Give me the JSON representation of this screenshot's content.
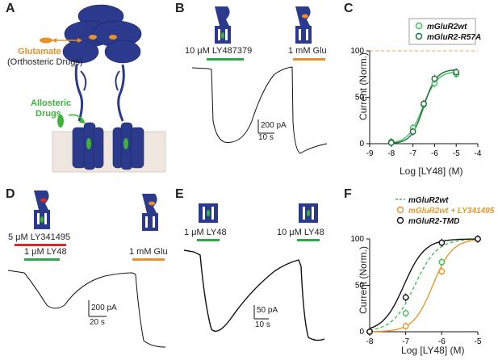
{
  "panels": {
    "a": {
      "label": "A",
      "glutamate_title": "Glutamate",
      "glutamate_sub": "(Orthosteric Drugs)",
      "allosteric_line1": "Allosteric",
      "allosteric_line2": "Drugs",
      "colors": {
        "receptor": "#2b3a8c",
        "glutamate": "#e8902a",
        "allosteric": "#3cb43c",
        "membrane": "#efe6e0"
      }
    },
    "b": {
      "label": "B",
      "drug1": "10 μM LY487379",
      "drug2": "1 mM Glu",
      "scale_y": "200 pA",
      "scale_x": "10 s",
      "colors": {
        "drug1": "#2aa84a",
        "drug2": "#e8902a"
      }
    },
    "c": {
      "label": "C",
      "ylabel": "Current (Norm.)",
      "xlabel": "Log [LY48] (M)",
      "legend": [
        "mGluR2wt",
        "mGluR2-R57A"
      ]
    },
    "d": {
      "label": "D",
      "drug1": "5 μM LY341495",
      "drug2": "1 μM LY48",
      "drug3": "1 mM Glu",
      "scale_y": "200 pA",
      "scale_x": "20 s",
      "colors": {
        "drug1": "#d62a2a",
        "drug2": "#2aa84a",
        "drug3": "#e8902a"
      }
    },
    "e": {
      "label": "E",
      "drug1": "1 μM LY48",
      "drug2": "10 μM LY48",
      "scale_y": "50 pA",
      "scale_x": "10 s"
    },
    "f": {
      "label": "F",
      "ylabel": "Current (Norm.)",
      "xlabel": "Log [LY48] (M)",
      "legend": [
        "mGluR2wt",
        "mGluR2wt + LY341495",
        "mGluR2-TMD"
      ]
    }
  },
  "chart_data": [
    {
      "type": "scatter",
      "panel": "C",
      "xlabel": "Log [LY48] (M)",
      "ylabel": "Current (Norm.)",
      "xlim": [
        -9,
        -4
      ],
      "ylim": [
        0,
        100
      ],
      "xticks": [
        -9,
        -8,
        -7,
        -6,
        -5,
        -4
      ],
      "yticks": [
        0,
        50,
        100
      ],
      "reference_line": 100,
      "series": [
        {
          "name": "mGluR2wt",
          "color": "#3cc35a",
          "x": [
            -8,
            -7,
            -6.5,
            -6,
            -5
          ],
          "y": [
            2,
            17,
            42,
            65,
            75
          ]
        },
        {
          "name": "mGluR2-R57A",
          "color": "#1e6e3a",
          "x": [
            -8,
            -7,
            -6.5,
            -6,
            -5
          ],
          "y": [
            1,
            13,
            43,
            70,
            77
          ]
        }
      ]
    },
    {
      "type": "scatter",
      "panel": "F",
      "xlabel": "Log [LY48] (M)",
      "ylabel": "Current (Norm.)",
      "xlim": [
        -8,
        -5
      ],
      "ylim": [
        0,
        100
      ],
      "xticks": [
        -8,
        -7,
        -6,
        -5
      ],
      "yticks": [
        0,
        50,
        100
      ],
      "series": [
        {
          "name": "mGluR2wt",
          "color": "#3cc35a",
          "x": [
            -8,
            -7,
            -6,
            -5
          ],
          "y": [
            0,
            20,
            75,
            100
          ]
        },
        {
          "name": "mGluR2wt + LY341495",
          "color": "#f0962a",
          "x": [
            -8,
            -7,
            -6,
            -5
          ],
          "y": [
            0,
            6,
            65,
            100
          ]
        },
        {
          "name": "mGluR2-TMD",
          "color": "#111111",
          "x": [
            -8,
            -7,
            -6,
            -5
          ],
          "y": [
            0,
            37,
            96,
            100
          ]
        }
      ]
    }
  ]
}
